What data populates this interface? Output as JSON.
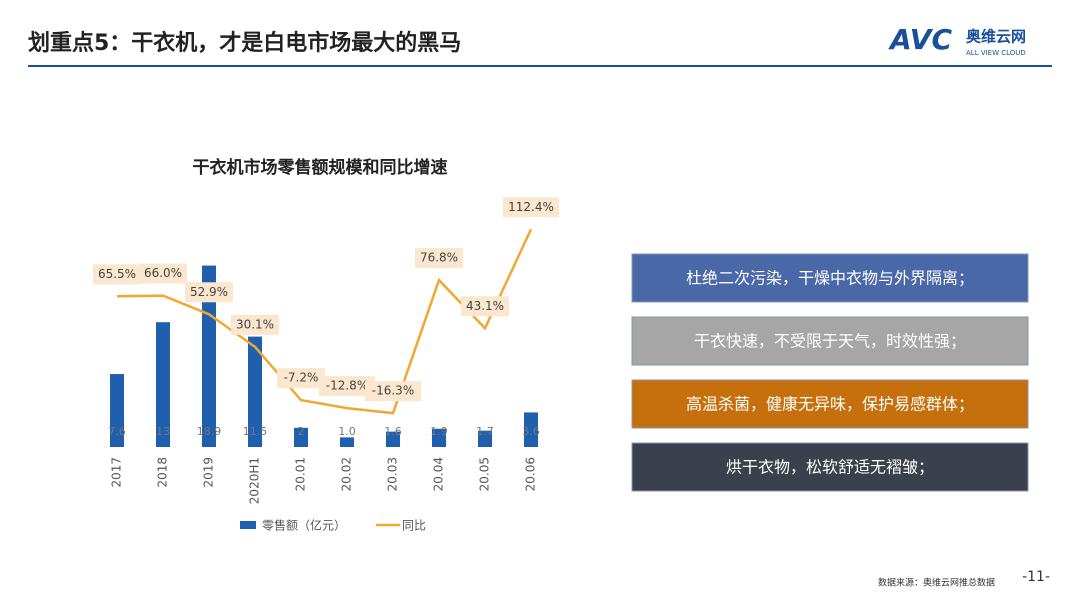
{
  "header": {
    "title": "划重点5：干衣机，才是白电市场最大的黑马",
    "logo": {
      "brand": "AVC",
      "name": "奥维云网",
      "tagline": "ALL VIEW CLOUD"
    }
  },
  "chart_data": {
    "type": "bar",
    "title": "干衣机市场零售额规模和同比增速",
    "categories": [
      "2017",
      "2018",
      "2019",
      "2020H1",
      "20.01",
      "20.02",
      "20.03",
      "20.04",
      "20.05",
      "20.06"
    ],
    "series": [
      {
        "name": "零售额（亿元）",
        "type": "bar",
        "color": "#1f5fad",
        "values": [
          7.6,
          13,
          18.9,
          11.5,
          2,
          1.0,
          1.6,
          1.9,
          1.7,
          3.6
        ],
        "value_labels": [
          "7.6",
          "13",
          "18.9",
          "11.5",
          "2",
          "1.0",
          "1.6",
          "1.9",
          "1.7",
          "3.6"
        ]
      },
      {
        "name": "同比",
        "type": "line",
        "axis": "y2",
        "color": "#f0a830",
        "values": [
          65.5,
          66.0,
          52.9,
          30.1,
          -7.2,
          -12.8,
          -16.3,
          76.8,
          43.1,
          112.4
        ],
        "value_labels": [
          "65.5%",
          "66.0%",
          "52.9%",
          "30.1%",
          "-7.2%",
          "-12.8%",
          "-16.3%",
          "76.8%",
          "43.1%",
          "112.4%"
        ]
      }
    ],
    "ylim": [
      0,
      25
    ],
    "y2lim": [
      -40,
      128
    ],
    "legend": "bottom"
  },
  "notes": [
    "杜绝二次污染，干燥中衣物与外界隔离；",
    "干衣快速，不受限于天气，时效性强；",
    "高温杀菌，健康无异味，保护易感群体；",
    "烘干衣物，松软舒适无褶皱；"
  ],
  "footer": {
    "source": "数据来源：奥维云网推总数据",
    "page": "-11-"
  }
}
